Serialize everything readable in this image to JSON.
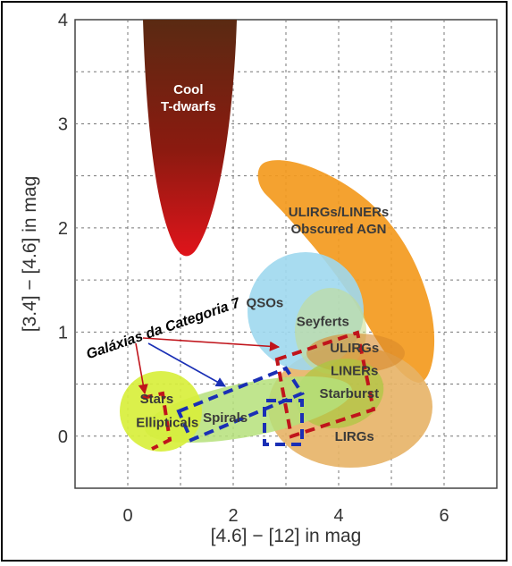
{
  "chart_data": {
    "type": "scatter",
    "title": "",
    "xlabel": "[4.6] − [12] in mag",
    "ylabel": "[3.4] − [4.6] in mag",
    "xlim": [
      -1.0,
      7.0
    ],
    "ylim": [
      -0.5,
      4.0
    ],
    "x_ticks": [
      {
        "value": 0,
        "label": "0"
      },
      {
        "value": 2,
        "label": "2"
      },
      {
        "value": 4,
        "label": "4"
      },
      {
        "value": 6,
        "label": "6"
      }
    ],
    "y_ticks": [
      {
        "value": 0,
        "label": "0"
      },
      {
        "value": 1,
        "label": "1"
      },
      {
        "value": 2,
        "label": "2"
      },
      {
        "value": 3,
        "label": "3"
      },
      {
        "value": 4,
        "label": "4"
      }
    ],
    "grid": true,
    "regions": [
      {
        "name": "Cool T-dwarfs",
        "label_lines": [
          "Cool",
          "T-dwarfs"
        ],
        "color": "#8b1a10",
        "cx": 1.2,
        "cy": 3.25,
        "label_x": 1.15,
        "label_y": 3.25
      },
      {
        "name": "ULIRGs/LINERs Obscured AGN",
        "label_lines": [
          "ULIRGs/LINERs",
          "Obscured AGN"
        ],
        "color": "#f39a1e",
        "cx": 4.0,
        "cy": 1.6,
        "label_x": 4.0,
        "label_y": 2.07
      },
      {
        "name": "LIRGs",
        "label_lines": [
          "LIRGs"
        ],
        "color": "#e7b366",
        "cx": 4.1,
        "cy": 0.3,
        "label_x": 4.3,
        "label_y": 0.0
      },
      {
        "name": "QSOs",
        "label_lines": [
          "QSOs"
        ],
        "color": "#9fd8ee",
        "cx": 3.0,
        "cy": 1.05,
        "label_x": 2.6,
        "label_y": 1.28
      },
      {
        "name": "Seyferts",
        "label_lines": [
          "Seyferts"
        ],
        "color": "#b9d78a",
        "cx": 3.6,
        "cy": 0.9,
        "label_x": 3.7,
        "label_y": 1.1
      },
      {
        "name": "ULIRGs",
        "label_lines": [
          "ULIRGs"
        ],
        "color": "#d9892a",
        "cx": 4.2,
        "cy": 0.85,
        "label_x": 4.3,
        "label_y": 0.85
      },
      {
        "name": "LINERs",
        "label_lines": [
          "LINERs"
        ],
        "color": "#c9c04a",
        "cx": 4.2,
        "cy": 0.65,
        "label_x": 4.3,
        "label_y": 0.63
      },
      {
        "name": "Starburst",
        "label_lines": [
          "Starburst"
        ],
        "color": "#a9c93e",
        "cx": 3.9,
        "cy": 0.45,
        "label_x": 4.2,
        "label_y": 0.41
      },
      {
        "name": "Spirals",
        "label_lines": [
          "Spirals"
        ],
        "color": "#b5e07a",
        "cx": 2.0,
        "cy": 0.2,
        "label_x": 1.85,
        "label_y": 0.18
      },
      {
        "name": "Stars",
        "label_lines": [
          "Stars"
        ],
        "color": "#d8ef3c",
        "cx": 0.5,
        "cy": 0.35,
        "label_x": 0.55,
        "label_y": 0.36
      },
      {
        "name": "Ellipticals",
        "label_lines": [
          "Ellipticals"
        ],
        "color": "#d8ef3c",
        "cx": 0.7,
        "cy": 0.15,
        "label_x": 0.75,
        "label_y": 0.13
      }
    ],
    "annotation": {
      "text": "Galáxias da Categoria 7",
      "x": -0.75,
      "y": 0.74,
      "rotation_deg": -19
    }
  }
}
